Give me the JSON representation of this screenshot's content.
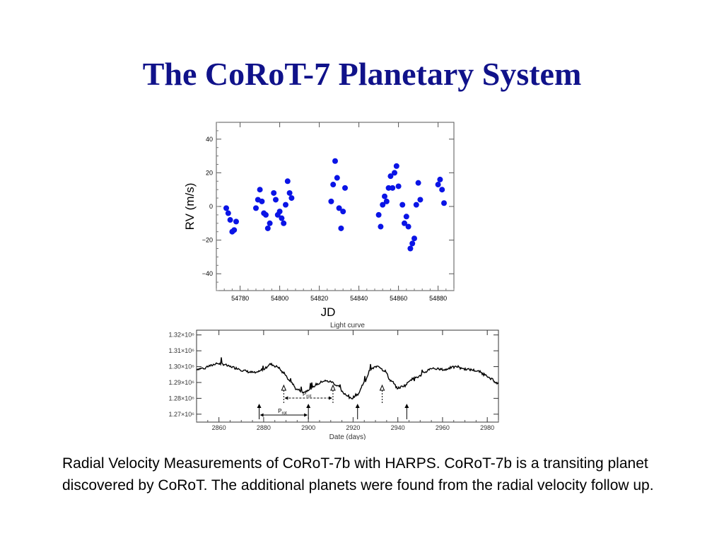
{
  "slide": {
    "title": "The CoRoT-7 Planetary System",
    "caption": "Radial Velocity Measurements of CoRoT-7b with HARPS. CoRoT-7b is a transiting planet discovered by CoRoT. The additional planets were found from the radial velocity follow up."
  },
  "colors": {
    "title": "#10128a",
    "points": "#0a14e6",
    "axes": "#000000",
    "curve": "#000000"
  },
  "chart_data": [
    {
      "type": "scatter",
      "title": "",
      "xlabel": "JD",
      "ylabel": "RV (m/s)",
      "xlim": [
        54768,
        54888
      ],
      "ylim": [
        -50,
        50
      ],
      "xticks": [
        54780,
        54800,
        54820,
        54840,
        54860,
        54880
      ],
      "yticks": [
        -40,
        -20,
        0,
        20,
        40
      ],
      "ytick_labels": [
        "−40",
        "−20",
        "0",
        "20",
        "40"
      ],
      "grid": false,
      "series": [
        {
          "x": [
            54773,
            54774,
            54775,
            54776,
            54777,
            54778,
            54788,
            54789,
            54790,
            54791,
            54792,
            54793,
            54794,
            54795,
            54797,
            54798,
            54799,
            54800,
            54801,
            54802,
            54803,
            54804,
            54805,
            54806,
            54826,
            54827,
            54828,
            54829,
            54830,
            54831,
            54832,
            54833,
            54850,
            54851,
            54852,
            54853,
            54854,
            54855,
            54856,
            54857,
            54858,
            54859,
            54860,
            54862,
            54863,
            54864,
            54865,
            54866,
            54867,
            54868,
            54869,
            54870,
            54871,
            54880,
            54881,
            54882,
            54883
          ],
          "y": [
            -1,
            -4,
            -8,
            -15,
            -14,
            -9,
            -1,
            4,
            10,
            3,
            -4,
            -5,
            -13,
            -10,
            8,
            4,
            -5,
            -3,
            -7,
            -10,
            1,
            15,
            8,
            5,
            3,
            13,
            27,
            17,
            -1,
            -13,
            -3,
            11,
            -5,
            -12,
            1,
            6,
            3,
            11,
            18,
            11,
            20,
            24,
            12,
            1,
            -10,
            -6,
            -12,
            -25,
            -22,
            -19,
            1,
            14,
            4,
            13,
            16,
            10,
            2
          ]
        }
      ]
    },
    {
      "type": "line",
      "title": "Light curve",
      "xlabel": "Date (days)",
      "ylabel": "",
      "xlim": [
        2850,
        2985
      ],
      "ylim": [
        1.265,
        1.323
      ],
      "xticks": [
        2860,
        2880,
        2900,
        2920,
        2940,
        2960,
        2980
      ],
      "ytick_labels": [
        "1.27×10⁶",
        "1.28×10⁶",
        "1.29×10⁶",
        "1.30×10⁶",
        "1.31×10⁶",
        "1.32×10⁶"
      ],
      "ytick_values": [
        1.27,
        1.28,
        1.29,
        1.3,
        1.31,
        1.32
      ],
      "y_unit": "×10⁶",
      "grid": false,
      "series": [
        {
          "x": [
            2850,
            2853,
            2856,
            2859,
            2862,
            2865,
            2868,
            2871,
            2874,
            2877,
            2880,
            2883,
            2886,
            2889,
            2892,
            2895,
            2898,
            2901,
            2904,
            2907,
            2910,
            2913,
            2916,
            2919,
            2922,
            2925,
            2928,
            2931,
            2934,
            2937,
            2940,
            2943,
            2946,
            2949,
            2952,
            2955,
            2958,
            2961,
            2964,
            2967,
            2970,
            2973,
            2976,
            2979,
            2982,
            2985
          ],
          "y": [
            1.2985,
            1.299,
            1.3005,
            1.302,
            1.3015,
            1.3,
            1.299,
            1.2975,
            1.2965,
            1.296,
            1.2985,
            1.3015,
            1.3,
            1.296,
            1.2905,
            1.2855,
            1.284,
            1.286,
            1.289,
            1.291,
            1.2905,
            1.288,
            1.283,
            1.28,
            1.2825,
            1.29,
            1.2985,
            1.3005,
            1.2975,
            1.291,
            1.2865,
            1.288,
            1.292,
            1.2935,
            1.2965,
            1.299,
            1.2985,
            1.298,
            1.2995,
            1.3,
            1.2985,
            1.298,
            1.297,
            1.295,
            1.292,
            1.289
          ]
        }
      ],
      "annotations": [
        {
          "type": "arrow-up",
          "x": 2878,
          "style": "solid"
        },
        {
          "type": "arrow-up",
          "x": 2900,
          "style": "solid"
        },
        {
          "type": "arrow-up",
          "x": 2922,
          "style": "solid"
        },
        {
          "type": "arrow-up",
          "x": 2944,
          "style": "solid"
        },
        {
          "type": "arrow-up",
          "x": 2889,
          "style": "dashed-hollow"
        },
        {
          "type": "arrow-up",
          "x": 2911,
          "style": "dashed-hollow"
        },
        {
          "type": "arrow-up",
          "x": 2933,
          "style": "dashed-hollow"
        },
        {
          "type": "span",
          "x0": 2878,
          "x1": 2900,
          "label": "P",
          "sub": "rot",
          "style": "solid"
        },
        {
          "type": "span",
          "x0": 2889,
          "x1": 2911,
          "label": "P",
          "sub": "rot",
          "style": "dashed"
        }
      ]
    }
  ]
}
